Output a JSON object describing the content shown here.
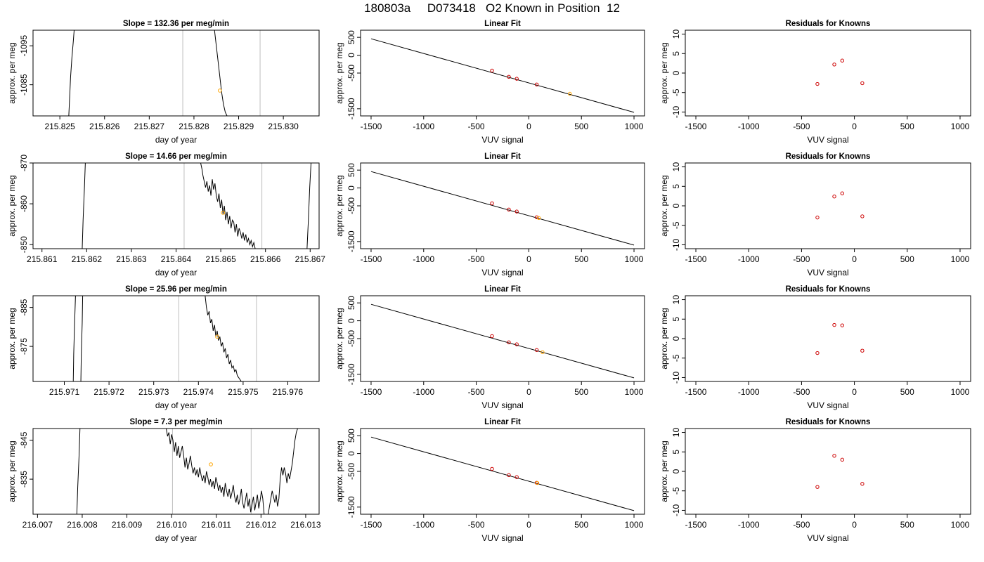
{
  "figure": {
    "title": "180803a     D073418   O2 Known in Position  12"
  },
  "colors": {
    "trace": "#000000",
    "marker_orange": "#ffa500",
    "marker_red": "#cd0000",
    "window_lines": "#bebebe",
    "fit_line": "#000000"
  },
  "chart_data": [
    {
      "row": 1,
      "panel": "time-series",
      "type": "line",
      "title": "Slope =  132.36  per meg/min",
      "xlabel": "day of year",
      "ylabel": "approx. per meg",
      "xlim": [
        215.8244,
        215.8308
      ],
      "ylim": [
        -1099,
        -1077
      ],
      "y_reversed": true,
      "xticks": [
        "215.825",
        "215.826",
        "215.827",
        "215.828",
        "215.829",
        "215.830"
      ],
      "yticks": [
        "-1085",
        "-1095"
      ],
      "window": [
        215.82775,
        215.82948
      ],
      "marker": {
        "x": 215.82858,
        "y": -1083.5
      },
      "series": [
        {
          "x": [
            215.8252,
            215.82522,
            215.82524,
            215.82527,
            215.8253,
            215.82532
          ],
          "y": [
            -1077,
            -1082,
            -1087,
            -1092,
            -1096,
            -1099
          ]
        },
        {
          "x": [
            215.82846,
            215.8285,
            215.82854,
            215.82858,
            215.82862,
            215.82866,
            215.8287,
            215.82874
          ],
          "y": [
            -1099,
            -1095,
            -1091,
            -1087,
            -1083,
            -1080,
            -1078,
            -1077
          ]
        }
      ]
    },
    {
      "row": 1,
      "panel": "linear-fit",
      "type": "scatter",
      "title": "Linear Fit",
      "xlabel": "VUV signal",
      "ylabel": "approx. per meg",
      "xlim": [
        -1600,
        1100
      ],
      "ylim": [
        -1700,
        700
      ],
      "xticks": [
        -1500,
        -1000,
        -500,
        0,
        500,
        1000
      ],
      "yticks": [
        500,
        0,
        -500,
        -1500
      ],
      "fit_line": {
        "x": [
          -1500,
          1000
        ],
        "y": [
          460,
          -1600
        ]
      },
      "points": [
        {
          "x": -350,
          "y": -430
        },
        {
          "x": -190,
          "y": -605
        },
        {
          "x": -115,
          "y": -660
        },
        {
          "x": 75,
          "y": -820
        }
      ],
      "unknown": {
        "x": 390,
        "y": -1080
      }
    },
    {
      "row": 1,
      "panel": "residuals",
      "type": "scatter",
      "title": "Residuals for Knowns",
      "xlabel": "VUV signal",
      "ylabel": "approx. per meg",
      "xlim": [
        -1600,
        1100
      ],
      "ylim": [
        -11,
        11
      ],
      "xticks": [
        -1500,
        -1000,
        -500,
        0,
        500,
        1000
      ],
      "yticks": [
        10,
        5,
        0,
        -5,
        -10
      ],
      "points": [
        {
          "x": -350,
          "y": -2.8
        },
        {
          "x": -190,
          "y": 2.2
        },
        {
          "x": -115,
          "y": 3.2
        },
        {
          "x": 75,
          "y": -2.6
        }
      ]
    },
    {
      "row": 2,
      "panel": "time-series",
      "type": "line",
      "title": "Slope =  14.66  per meg/min",
      "xlabel": "day of year",
      "ylabel": "approx. per meg",
      "xlim": [
        215.8608,
        215.8672
      ],
      "ylim": [
        -870,
        -849
      ],
      "y_reversed": true,
      "xticks": [
        "215.861",
        "215.862",
        "215.863",
        "215.864",
        "215.865",
        "215.866",
        "215.867"
      ],
      "yticks": [
        "-850",
        "-860",
        "-870"
      ],
      "window": [
        215.86418,
        215.86592
      ],
      "marker": {
        "x": 215.86505,
        "y": -857.8
      },
      "series": [
        {
          "x": [
            215.8619,
            215.86192,
            215.86195,
            215.86197
          ],
          "y": [
            -849,
            -856,
            -864,
            -870
          ]
        },
        {
          "x": [
            215.86455,
            215.86458,
            215.8646,
            215.86463,
            215.86466,
            215.86469,
            215.86472,
            215.86475,
            215.86478,
            215.86481,
            215.86484,
            215.86487,
            215.8649,
            215.86493,
            215.86496,
            215.86499,
            215.86502,
            215.86505,
            215.86508,
            215.86511,
            215.86514,
            215.86517,
            215.8652,
            215.86523,
            215.86526,
            215.86529,
            215.86532,
            215.86535,
            215.86538,
            215.86541,
            215.86544,
            215.86547,
            215.8655,
            215.86553,
            215.86556,
            215.86559,
            215.86562,
            215.86565,
            215.86568,
            215.86571,
            215.86574,
            215.86577,
            215.8658,
            215.86583,
            215.86586,
            215.86589,
            215.86592,
            215.86595,
            215.86598,
            215.86601,
            215.86604,
            215.86607,
            215.8661
          ],
          "y": [
            -870,
            -868.5,
            -867,
            -865.5,
            -864,
            -865.5,
            -863,
            -864.5,
            -862,
            -866,
            -863.5,
            -865,
            -862,
            -860.5,
            -862.5,
            -859,
            -861,
            -857.5,
            -859.5,
            -856,
            -858,
            -855,
            -857,
            -854,
            -856,
            -855.5,
            -853,
            -855,
            -852,
            -854,
            -853,
            -851.5,
            -853,
            -851,
            -852.5,
            -850.5,
            -851.5,
            -850,
            -851,
            -849.5,
            -850.5,
            -849,
            -849,
            -849,
            -849,
            -849,
            -849,
            -849,
            -849,
            -849,
            -849,
            -849,
            -849
          ]
        },
        {
          "x": [
            215.86693,
            215.86696,
            215.86699,
            215.86702
          ],
          "y": [
            -849,
            -856,
            -864,
            -870
          ]
        }
      ]
    },
    {
      "row": 2,
      "panel": "linear-fit",
      "type": "scatter",
      "title": "Linear Fit",
      "xlabel": "VUV signal",
      "ylabel": "approx. per meg",
      "xlim": [
        -1600,
        1100
      ],
      "ylim": [
        -1700,
        700
      ],
      "xticks": [
        -1500,
        -1000,
        -500,
        0,
        500,
        1000
      ],
      "yticks": [
        500,
        0,
        -500,
        -1500
      ],
      "fit_line": {
        "x": [
          -1500,
          1000
        ],
        "y": [
          460,
          -1600
        ]
      },
      "points": [
        {
          "x": -350,
          "y": -430
        },
        {
          "x": -190,
          "y": -605
        },
        {
          "x": -115,
          "y": -660
        },
        {
          "x": 75,
          "y": -820
        }
      ],
      "unknown": {
        "x": 95,
        "y": -840
      }
    },
    {
      "row": 2,
      "panel": "residuals",
      "type": "scatter",
      "title": "Residuals for Knowns",
      "xlabel": "VUV signal",
      "ylabel": "approx. per meg",
      "xlim": [
        -1600,
        1100
      ],
      "ylim": [
        -11,
        11
      ],
      "xticks": [
        -1500,
        -1000,
        -500,
        0,
        500,
        1000
      ],
      "yticks": [
        10,
        5,
        0,
        -5,
        -10
      ],
      "points": [
        {
          "x": -350,
          "y": -3.0
        },
        {
          "x": -190,
          "y": 2.4
        },
        {
          "x": -115,
          "y": 3.2
        },
        {
          "x": 75,
          "y": -2.7
        }
      ]
    },
    {
      "row": 3,
      "panel": "time-series",
      "type": "line",
      "title": "Slope =  25.96  per meg/min",
      "xlabel": "day of year",
      "ylabel": "approx. per meg",
      "xlim": [
        215.9703,
        215.9767
      ],
      "ylim": [
        -888,
        -866
      ],
      "y_reversed": true,
      "xticks": [
        "215.971",
        "215.972",
        "215.973",
        "215.974",
        "215.975",
        "215.976"
      ],
      "yticks": [
        "-875",
        "-885"
      ],
      "window": [
        215.97356,
        215.9753
      ],
      "marker": {
        "x": 215.97442,
        "y": -877.5
      },
      "series": [
        {
          "x": [
            215.9712,
            215.97121,
            215.97123,
            215.97125
          ],
          "y": [
            -866,
            -873,
            -881,
            -888
          ]
        },
        {
          "x": [
            215.97137,
            215.97138,
            215.9714,
            215.97141
          ],
          "y": [
            -866,
            -873,
            -881,
            -888
          ]
        },
        {
          "x": [
            215.97415,
            215.97418,
            215.97421,
            215.97424,
            215.97427,
            215.9743,
            215.97433,
            215.97436,
            215.97439,
            215.97442,
            215.97445,
            215.97448,
            215.97451,
            215.97454,
            215.97457,
            215.9746,
            215.97463,
            215.97466,
            215.97469,
            215.97472,
            215.97475,
            215.97478,
            215.97481,
            215.97484,
            215.97487,
            215.9749,
            215.97493,
            215.97496
          ],
          "y": [
            -888,
            -885,
            -883,
            -884,
            -881,
            -882,
            -879,
            -880.5,
            -877.5,
            -879,
            -876.5,
            -877.5,
            -875,
            -876,
            -873.5,
            -874.5,
            -872,
            -873,
            -870.5,
            -871.5,
            -869.5,
            -870,
            -868.5,
            -869,
            -867.5,
            -867,
            -866.5,
            -866
          ]
        }
      ]
    },
    {
      "row": 3,
      "panel": "linear-fit",
      "type": "scatter",
      "title": "Linear Fit",
      "xlabel": "VUV signal",
      "ylabel": "approx. per meg",
      "xlim": [
        -1600,
        1100
      ],
      "ylim": [
        -1700,
        700
      ],
      "xticks": [
        -1500,
        -1000,
        -500,
        0,
        500,
        1000
      ],
      "yticks": [
        500,
        0,
        -500,
        -1500
      ],
      "fit_line": {
        "x": [
          -1500,
          1000
        ],
        "y": [
          460,
          -1600
        ]
      },
      "points": [
        {
          "x": -350,
          "y": -430
        },
        {
          "x": -190,
          "y": -605
        },
        {
          "x": -115,
          "y": -660
        },
        {
          "x": 75,
          "y": -820
        }
      ],
      "unknown": {
        "x": 130,
        "y": -880
      }
    },
    {
      "row": 3,
      "panel": "residuals",
      "type": "scatter",
      "title": "Residuals for Knowns",
      "xlabel": "VUV signal",
      "ylabel": "approx. per meg",
      "xlim": [
        -1600,
        1100
      ],
      "ylim": [
        -11,
        11
      ],
      "xticks": [
        -1500,
        -1000,
        -500,
        0,
        500,
        1000
      ],
      "yticks": [
        10,
        5,
        0,
        -5,
        -10
      ],
      "points": [
        {
          "x": -350,
          "y": -3.7
        },
        {
          "x": -190,
          "y": 3.5
        },
        {
          "x": -115,
          "y": 3.4
        },
        {
          "x": 75,
          "y": -3.1
        }
      ]
    },
    {
      "row": 4,
      "panel": "time-series",
      "type": "line",
      "title": "Slope =  7.3  per meg/min",
      "xlabel": "day of year",
      "ylabel": "approx. per meg",
      "xlim": [
        216.0069,
        216.0133
      ],
      "ylim": [
        -848,
        -826
      ],
      "y_reversed": true,
      "xticks": [
        "216.007",
        "216.008",
        "216.009",
        "216.010",
        "216.011",
        "216.012",
        "216.013"
      ],
      "yticks": [
        "-835",
        "-845"
      ],
      "window": [
        216.01002,
        216.01178
      ],
      "marker": {
        "x": 216.01088,
        "y": -838.8
      },
      "series": [
        {
          "x": [
            216.00788,
            216.0079,
            216.00793,
            216.00795
          ],
          "y": [
            -826,
            -833,
            -841,
            -848
          ]
        },
        {
          "x": [
            216.00988,
            216.00991,
            216.00994,
            216.00997,
            216.01,
            216.01003,
            216.01006,
            216.01009,
            216.01012,
            216.01015,
            216.01018,
            216.01021,
            216.01024,
            216.01027,
            216.0103,
            216.01033,
            216.01036,
            216.01039,
            216.01042,
            216.01045,
            216.01048,
            216.01051,
            216.01054,
            216.01057,
            216.0106,
            216.01063,
            216.01066,
            216.01069,
            216.01072,
            216.01075,
            216.01078,
            216.01081,
            216.01084,
            216.01087,
            216.0109,
            216.01093,
            216.01096,
            216.01099,
            216.01102,
            216.01105,
            216.01108,
            216.01111,
            216.01114,
            216.01117,
            216.0112,
            216.01123,
            216.01126,
            216.01129,
            216.01132,
            216.01135,
            216.01138,
            216.01141,
            216.01144,
            216.01147,
            216.0115,
            216.01153,
            216.01156,
            216.01159,
            216.01162,
            216.01165,
            216.01168,
            216.01171,
            216.01174,
            216.01177,
            216.0118,
            216.01183,
            216.01186,
            216.01189,
            216.01192,
            216.01195,
            216.01198,
            216.01201,
            216.01204,
            216.01207,
            216.0121,
            216.01213,
            216.01216,
            216.01219,
            216.01222,
            216.01225,
            216.01228,
            216.01231,
            216.01234,
            216.01237,
            216.0124,
            216.01243,
            216.01246,
            216.01249,
            216.01252,
            216.01255,
            216.01258,
            216.01261,
            216.01264,
            216.01267,
            216.0127,
            216.01273,
            216.01276,
            216.01279,
            216.01282
          ],
          "y": [
            -848,
            -846,
            -847,
            -844,
            -846.5,
            -845,
            -842,
            -844.5,
            -841,
            -843.5,
            -840.5,
            -842,
            -843.5,
            -841,
            -838,
            -840.5,
            -837.5,
            -839,
            -841,
            -838.5,
            -836.5,
            -838,
            -836,
            -837.5,
            -835.5,
            -838,
            -836,
            -834.5,
            -836,
            -834,
            -837,
            -835.5,
            -833.5,
            -835,
            -833,
            -834.5,
            -832.5,
            -835.5,
            -834,
            -832,
            -833.5,
            -831.5,
            -833,
            -830.5,
            -834,
            -832,
            -830.5,
            -832.5,
            -830,
            -831.5,
            -833.5,
            -830.5,
            -829,
            -831,
            -828.5,
            -830,
            -832.5,
            -829,
            -827.5,
            -829.5,
            -831.5,
            -828,
            -830,
            -826.5,
            -828.5,
            -830.5,
            -827,
            -829,
            -831,
            -827.5,
            -829.5,
            -832,
            -830,
            -826,
            -826,
            -826,
            -826,
            -828,
            -830,
            -832,
            -830.5,
            -829,
            -831,
            -828,
            -830,
            -835,
            -838,
            -836,
            -838,
            -836.5,
            -834,
            -836.5,
            -835,
            -837,
            -839,
            -842,
            -845,
            -847,
            -848
          ]
        }
      ]
    },
    {
      "row": 4,
      "panel": "linear-fit",
      "type": "scatter",
      "title": "Linear Fit",
      "xlabel": "VUV signal",
      "ylabel": "approx. per meg",
      "xlim": [
        -1600,
        1100
      ],
      "ylim": [
        -1700,
        700
      ],
      "xticks": [
        -1500,
        -1000,
        -500,
        0,
        500,
        1000
      ],
      "yticks": [
        500,
        0,
        -500,
        -1500
      ],
      "fit_line": {
        "x": [
          -1500,
          1000
        ],
        "y": [
          460,
          -1600
        ]
      },
      "points": [
        {
          "x": -350,
          "y": -430
        },
        {
          "x": -190,
          "y": -605
        },
        {
          "x": -115,
          "y": -660
        },
        {
          "x": 75,
          "y": -820
        }
      ],
      "unknown": {
        "x": 80,
        "y": -825
      }
    },
    {
      "row": 4,
      "panel": "residuals",
      "type": "scatter",
      "title": "Residuals for Knowns",
      "xlabel": "VUV signal",
      "ylabel": "approx. per meg",
      "xlim": [
        -1600,
        1100
      ],
      "ylim": [
        -11,
        11
      ],
      "xticks": [
        -1500,
        -1000,
        -500,
        0,
        500,
        1000
      ],
      "yticks": [
        10,
        5,
        0,
        -5,
        -10
      ],
      "points": [
        {
          "x": -350,
          "y": -4.0
        },
        {
          "x": -190,
          "y": 4.0
        },
        {
          "x": -115,
          "y": 3.0
        },
        {
          "x": 75,
          "y": -3.2
        }
      ]
    }
  ]
}
